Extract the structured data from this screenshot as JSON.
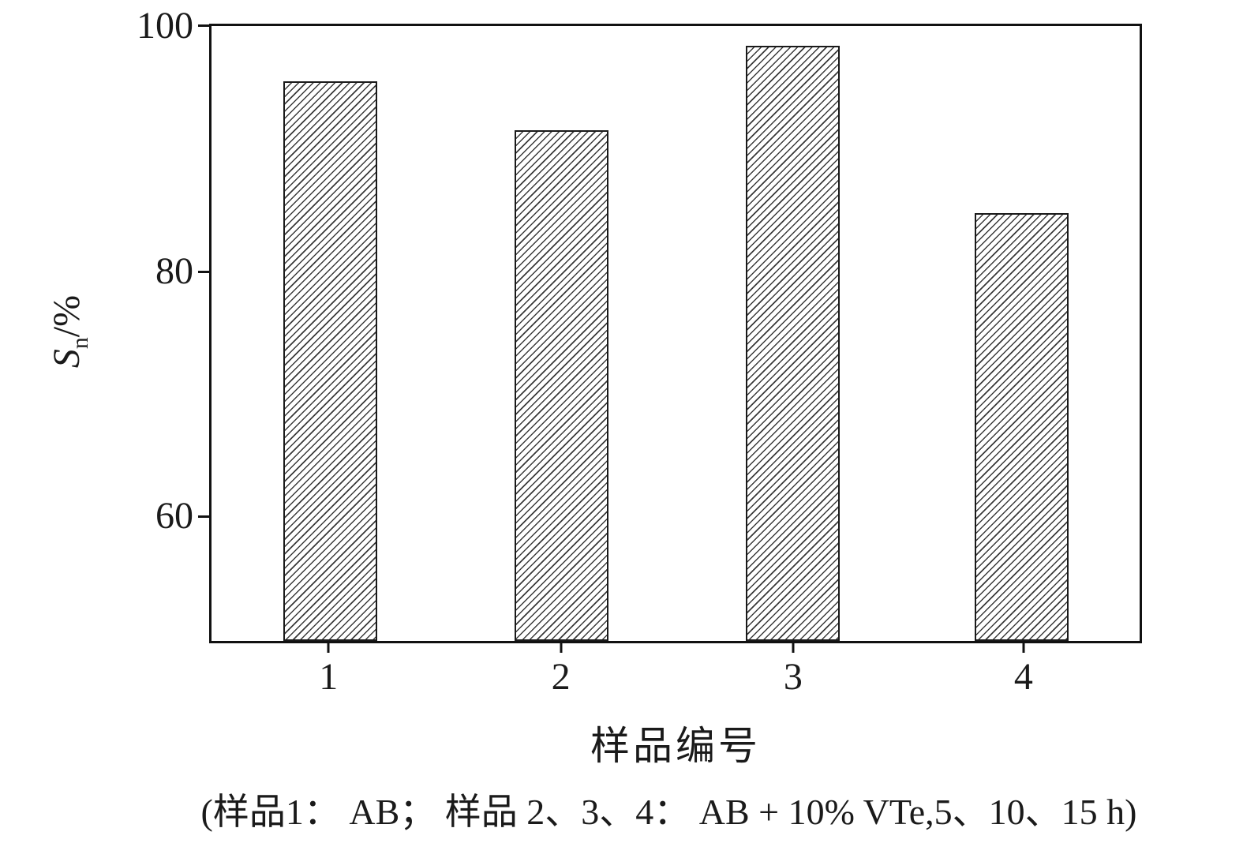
{
  "figure": {
    "caption": "(样品1： AB； 样品 2、3、4： AB + 10% VTe,5、10、15 h)"
  },
  "chart_data": {
    "type": "bar",
    "title": "",
    "categories": [
      "1",
      "2",
      "3",
      "4"
    ],
    "values": [
      95.5,
      91.5,
      98.4,
      84.8
    ],
    "xlabel": "样品编号",
    "ylabel": "Sn/%",
    "ylabel_parts": {
      "var": "S",
      "sub": "n",
      "rest": "/%"
    },
    "ylim": [
      50,
      100
    ],
    "yticks": [
      100,
      80,
      60
    ],
    "ytick_labels": [
      "100",
      "80",
      "60"
    ],
    "grid": false,
    "legend": "none",
    "bar_style": "diagonal-hatch",
    "colors": {
      "axis": "#111111",
      "bar_fill": "#ffffff",
      "hatch_line": "#3a3a3a",
      "text": "#1a1a1a"
    }
  }
}
